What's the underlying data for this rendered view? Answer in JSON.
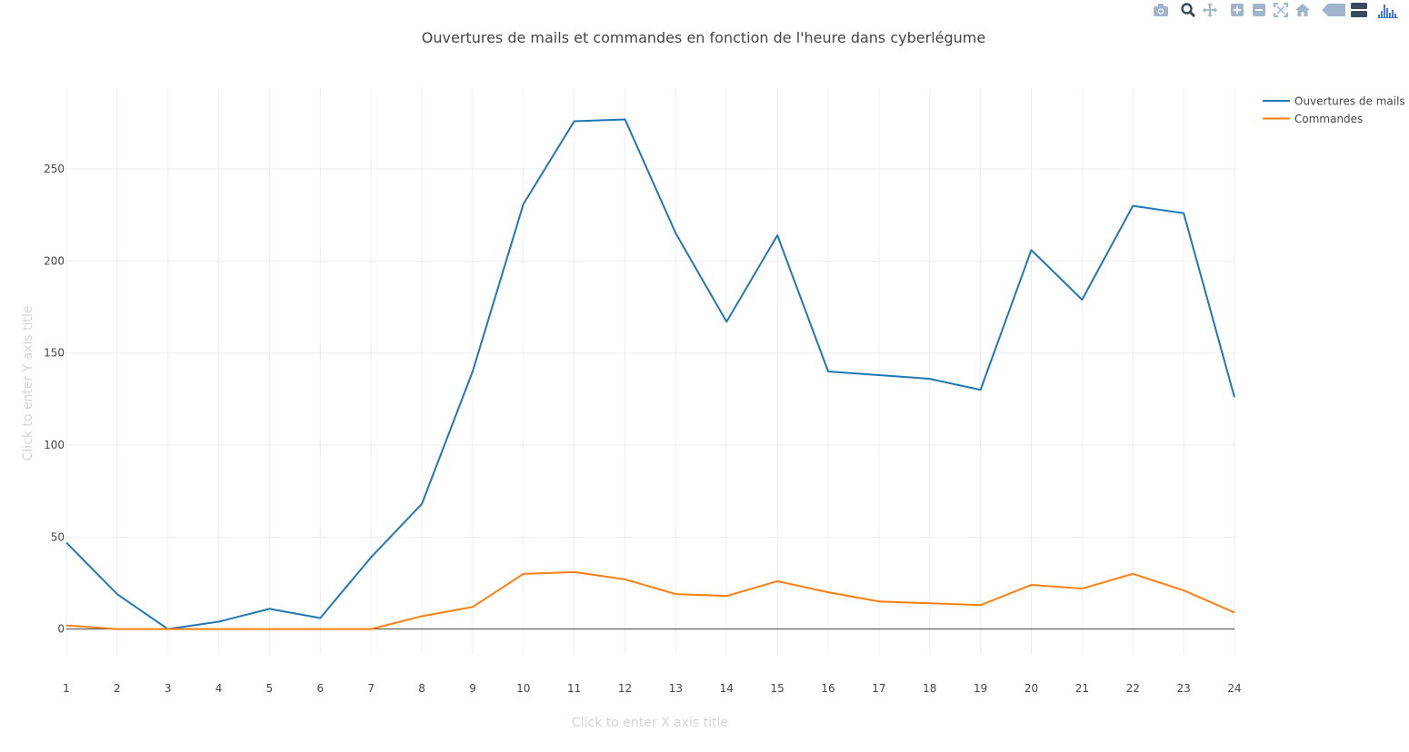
{
  "chart_data": {
    "type": "line",
    "title": "Ouvertures de mails et commandes en fonction de l'heure dans cyberlégume",
    "xlabel": "Click to enter X axis title",
    "ylabel": "Click to enter Y axis title",
    "x": [
      1,
      2,
      3,
      4,
      5,
      6,
      7,
      8,
      9,
      10,
      11,
      12,
      13,
      14,
      15,
      16,
      17,
      18,
      19,
      20,
      21,
      22,
      23,
      24
    ],
    "x_tick_labels": [
      "1",
      "2",
      "3",
      "4",
      "5",
      "6",
      "7",
      "8",
      "9",
      "10",
      "11",
      "12",
      "13",
      "14",
      "15",
      "16",
      "17",
      "18",
      "19",
      "20",
      "21",
      "22",
      "23",
      "24"
    ],
    "y_tick_values": [
      0,
      50,
      100,
      150,
      200,
      250
    ],
    "y_tick_labels": [
      "0",
      "50",
      "100",
      "150",
      "200",
      "250"
    ],
    "xlim": [
      1,
      24
    ],
    "ylim": [
      -14,
      294
    ],
    "grid": true,
    "legend_position": "top-right",
    "series": [
      {
        "name": "Ouvertures de mails",
        "color": "#1f77b4",
        "values": [
          47,
          19,
          0,
          4,
          11,
          6,
          39,
          68,
          140,
          231,
          276,
          277,
          215,
          167,
          214,
          140,
          138,
          136,
          130,
          206,
          179,
          230,
          226,
          126
        ]
      },
      {
        "name": "Commandes",
        "color": "#ff7f0e",
        "values": [
          2,
          0,
          0,
          0,
          0,
          0,
          0,
          7,
          12,
          30,
          31,
          27,
          19,
          18,
          26,
          20,
          15,
          14,
          13,
          24,
          22,
          30,
          21,
          9
        ]
      }
    ]
  },
  "modebar": {
    "icons": [
      "camera-icon",
      "zoom-icon",
      "pan-icon",
      "zoom-in-icon",
      "zoom-out-icon",
      "autoscale-icon",
      "reset-axes-icon",
      "hover-closest-icon",
      "hover-compare-icon",
      "plotly-logo-icon"
    ],
    "icon_color": "#a0b4cc",
    "active_color": "#3a4a5e",
    "logo_color": "#447adb"
  }
}
